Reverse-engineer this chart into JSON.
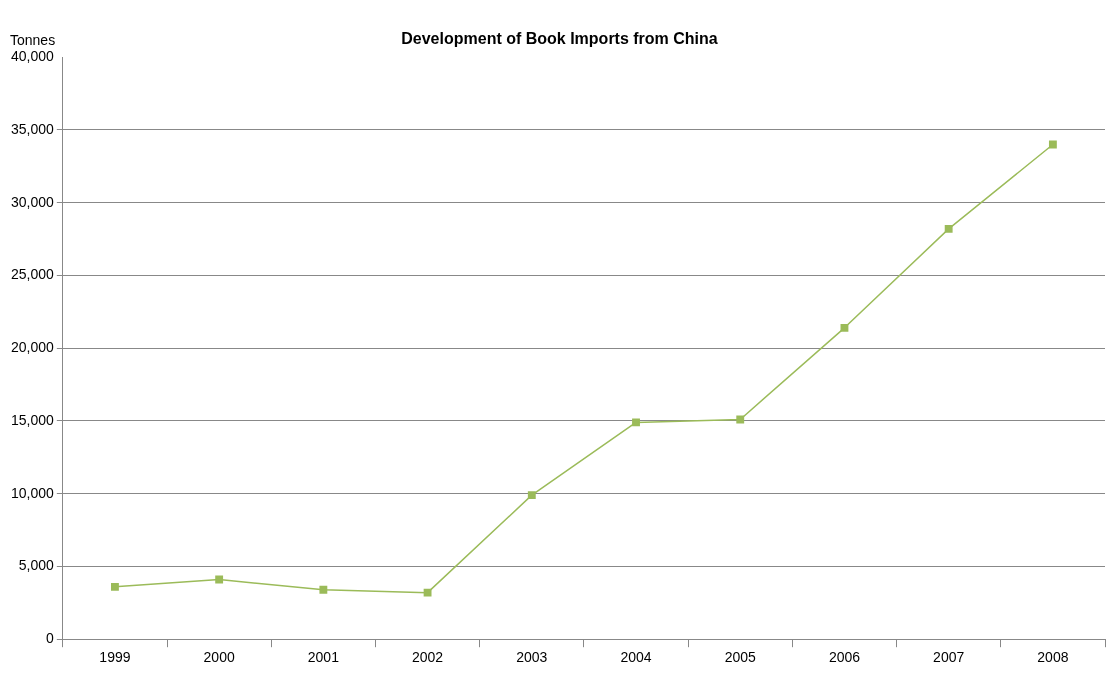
{
  "chart_data": {
    "type": "line",
    "title": "Development of Book Imports from China",
    "ylabel": "Tonnes",
    "categories": [
      "1999",
      "2000",
      "2001",
      "2002",
      "2003",
      "2004",
      "2005",
      "2006",
      "2007",
      "2008"
    ],
    "series": [
      {
        "color": "#9bbb59",
        "values": [
          3600,
          4100,
          3400,
          3200,
          9900,
          14900,
          15100,
          21400,
          28200,
          34000
        ]
      }
    ],
    "ylim": [
      0,
      40000
    ],
    "yticks": [
      0,
      {
        "value": 5000,
        "label": "5,000"
      },
      {
        "value": 10000,
        "label": "10,000"
      },
      {
        "value": 15000,
        "label": "15,000"
      },
      {
        "value": 20000,
        "label": "20,000"
      },
      {
        "value": 25000,
        "label": "25,000"
      },
      {
        "value": 30000,
        "label": "30,000"
      },
      {
        "value": 35000,
        "label": "35,000"
      },
      {
        "value": 40000,
        "label": "40,000"
      }
    ],
    "grid": "y",
    "legend": false,
    "marker": "square",
    "line_style": "solid"
  }
}
